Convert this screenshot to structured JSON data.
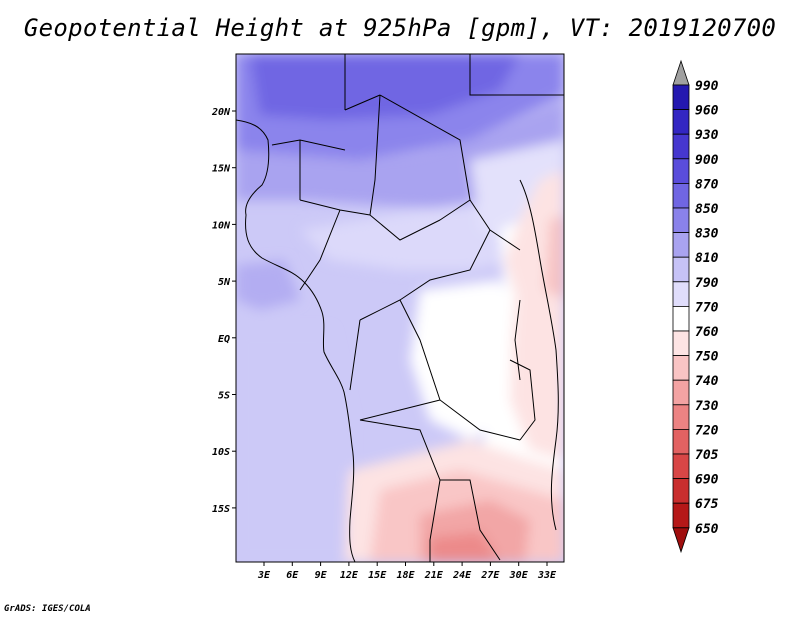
{
  "title": "Geopotential Height at 925hPa [gpm], VT: 2019120700",
  "credit": "GrADS: IGES/COLA",
  "map": {
    "x_ticks": [
      "3E",
      "6E",
      "9E",
      "12E",
      "15E",
      "18E",
      "21E",
      "24E",
      "27E",
      "30E",
      "33E"
    ],
    "y_ticks": [
      "20N",
      "15N",
      "10N",
      "5N",
      "EQ",
      "5S",
      "10S",
      "15S"
    ]
  },
  "colorbar": {
    "levels": [
      "990",
      "960",
      "930",
      "900",
      "870",
      "850",
      "830",
      "810",
      "790",
      "770",
      "760",
      "750",
      "740",
      "730",
      "720",
      "705",
      "690",
      "675",
      "650"
    ],
    "colors": [
      "#1a0a9c",
      "#2418b0",
      "#3326c2",
      "#4637cf",
      "#5a4ddb",
      "#7066e3",
      "#8a82ea",
      "#a9a3f0",
      "#c6c2f6",
      "#e0ddfb",
      "#ffffff",
      "#fde4e4",
      "#f9c4c4",
      "#f3a3a3",
      "#ec8383",
      "#e26262",
      "#d84646",
      "#c92e2e",
      "#b51818",
      "#a00e0e"
    ],
    "top_arrow_color": "#a0a0a0"
  }
}
